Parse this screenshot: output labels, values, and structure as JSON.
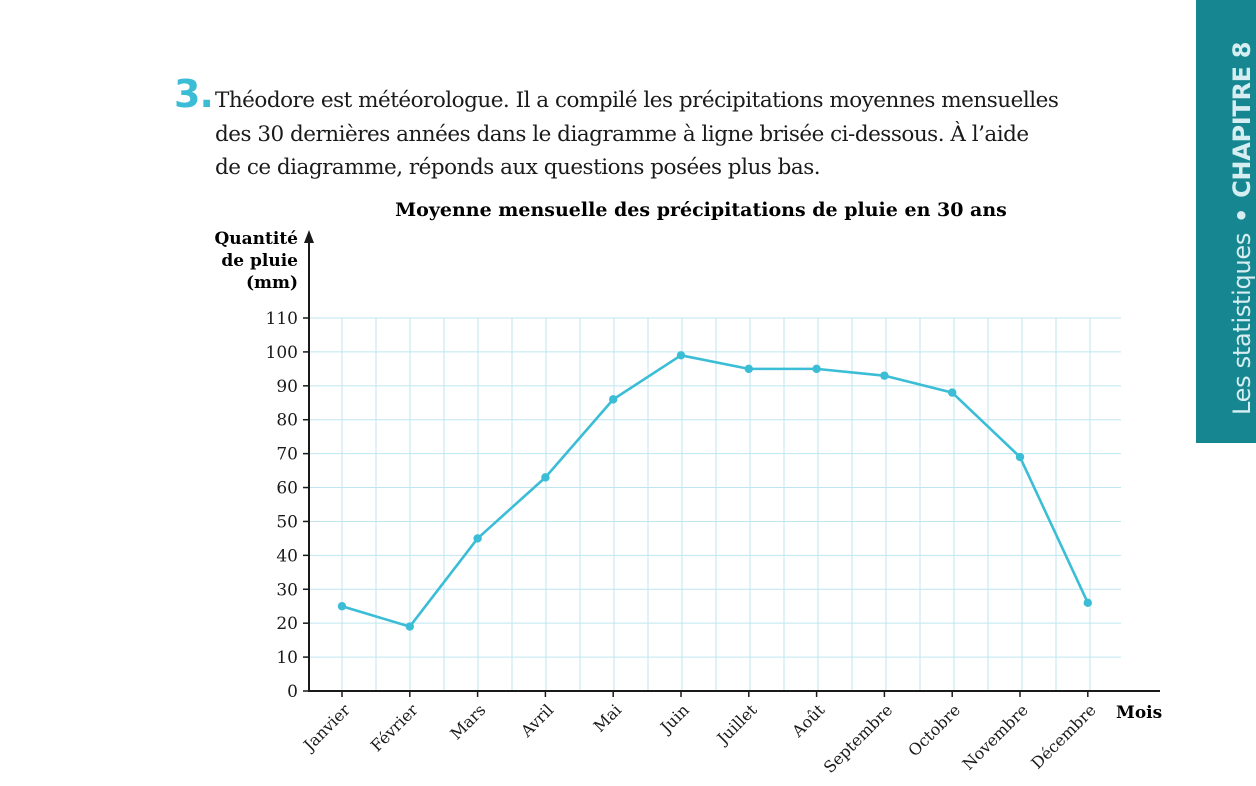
{
  "question": {
    "number": "3.",
    "lines": [
      "Théodore est météorologue. Il a compilé les précipitations moyennes mensuelles",
      "des 30 dernières années dans le diagramme à ligne brisée ci-dessous. À l’aide",
      "de ce diagramme, réponds aux questions posées plus bas."
    ]
  },
  "side_tab": {
    "topic": "Les statistiques",
    "separator": "•",
    "chapter": "CHAPITRE 8",
    "background": "#168790"
  },
  "chart_data": {
    "type": "line",
    "title": "Moyenne mensuelle des précipitations de pluie en 30 ans",
    "ylabel_lines": [
      "Quantité",
      "de pluie",
      "(mm)"
    ],
    "xlabel": "Mois",
    "categories": [
      "Janvier",
      "Février",
      "Mars",
      "Avril",
      "Mai",
      "Juin",
      "Juillet",
      "Août",
      "Septembre",
      "Octobre",
      "Novembre",
      "Décembre"
    ],
    "series": [
      {
        "values": [
          25,
          19,
          45,
          63,
          86,
          99,
          95,
          95,
          93,
          88,
          69,
          26
        ],
        "color": "#3bbdd6"
      }
    ],
    "ylim": [
      0,
      110
    ],
    "yticks": [
      0,
      10,
      20,
      30,
      40,
      50,
      60,
      70,
      80,
      90,
      100,
      110
    ],
    "grid": true,
    "grid_color": "#bfe6f0"
  }
}
